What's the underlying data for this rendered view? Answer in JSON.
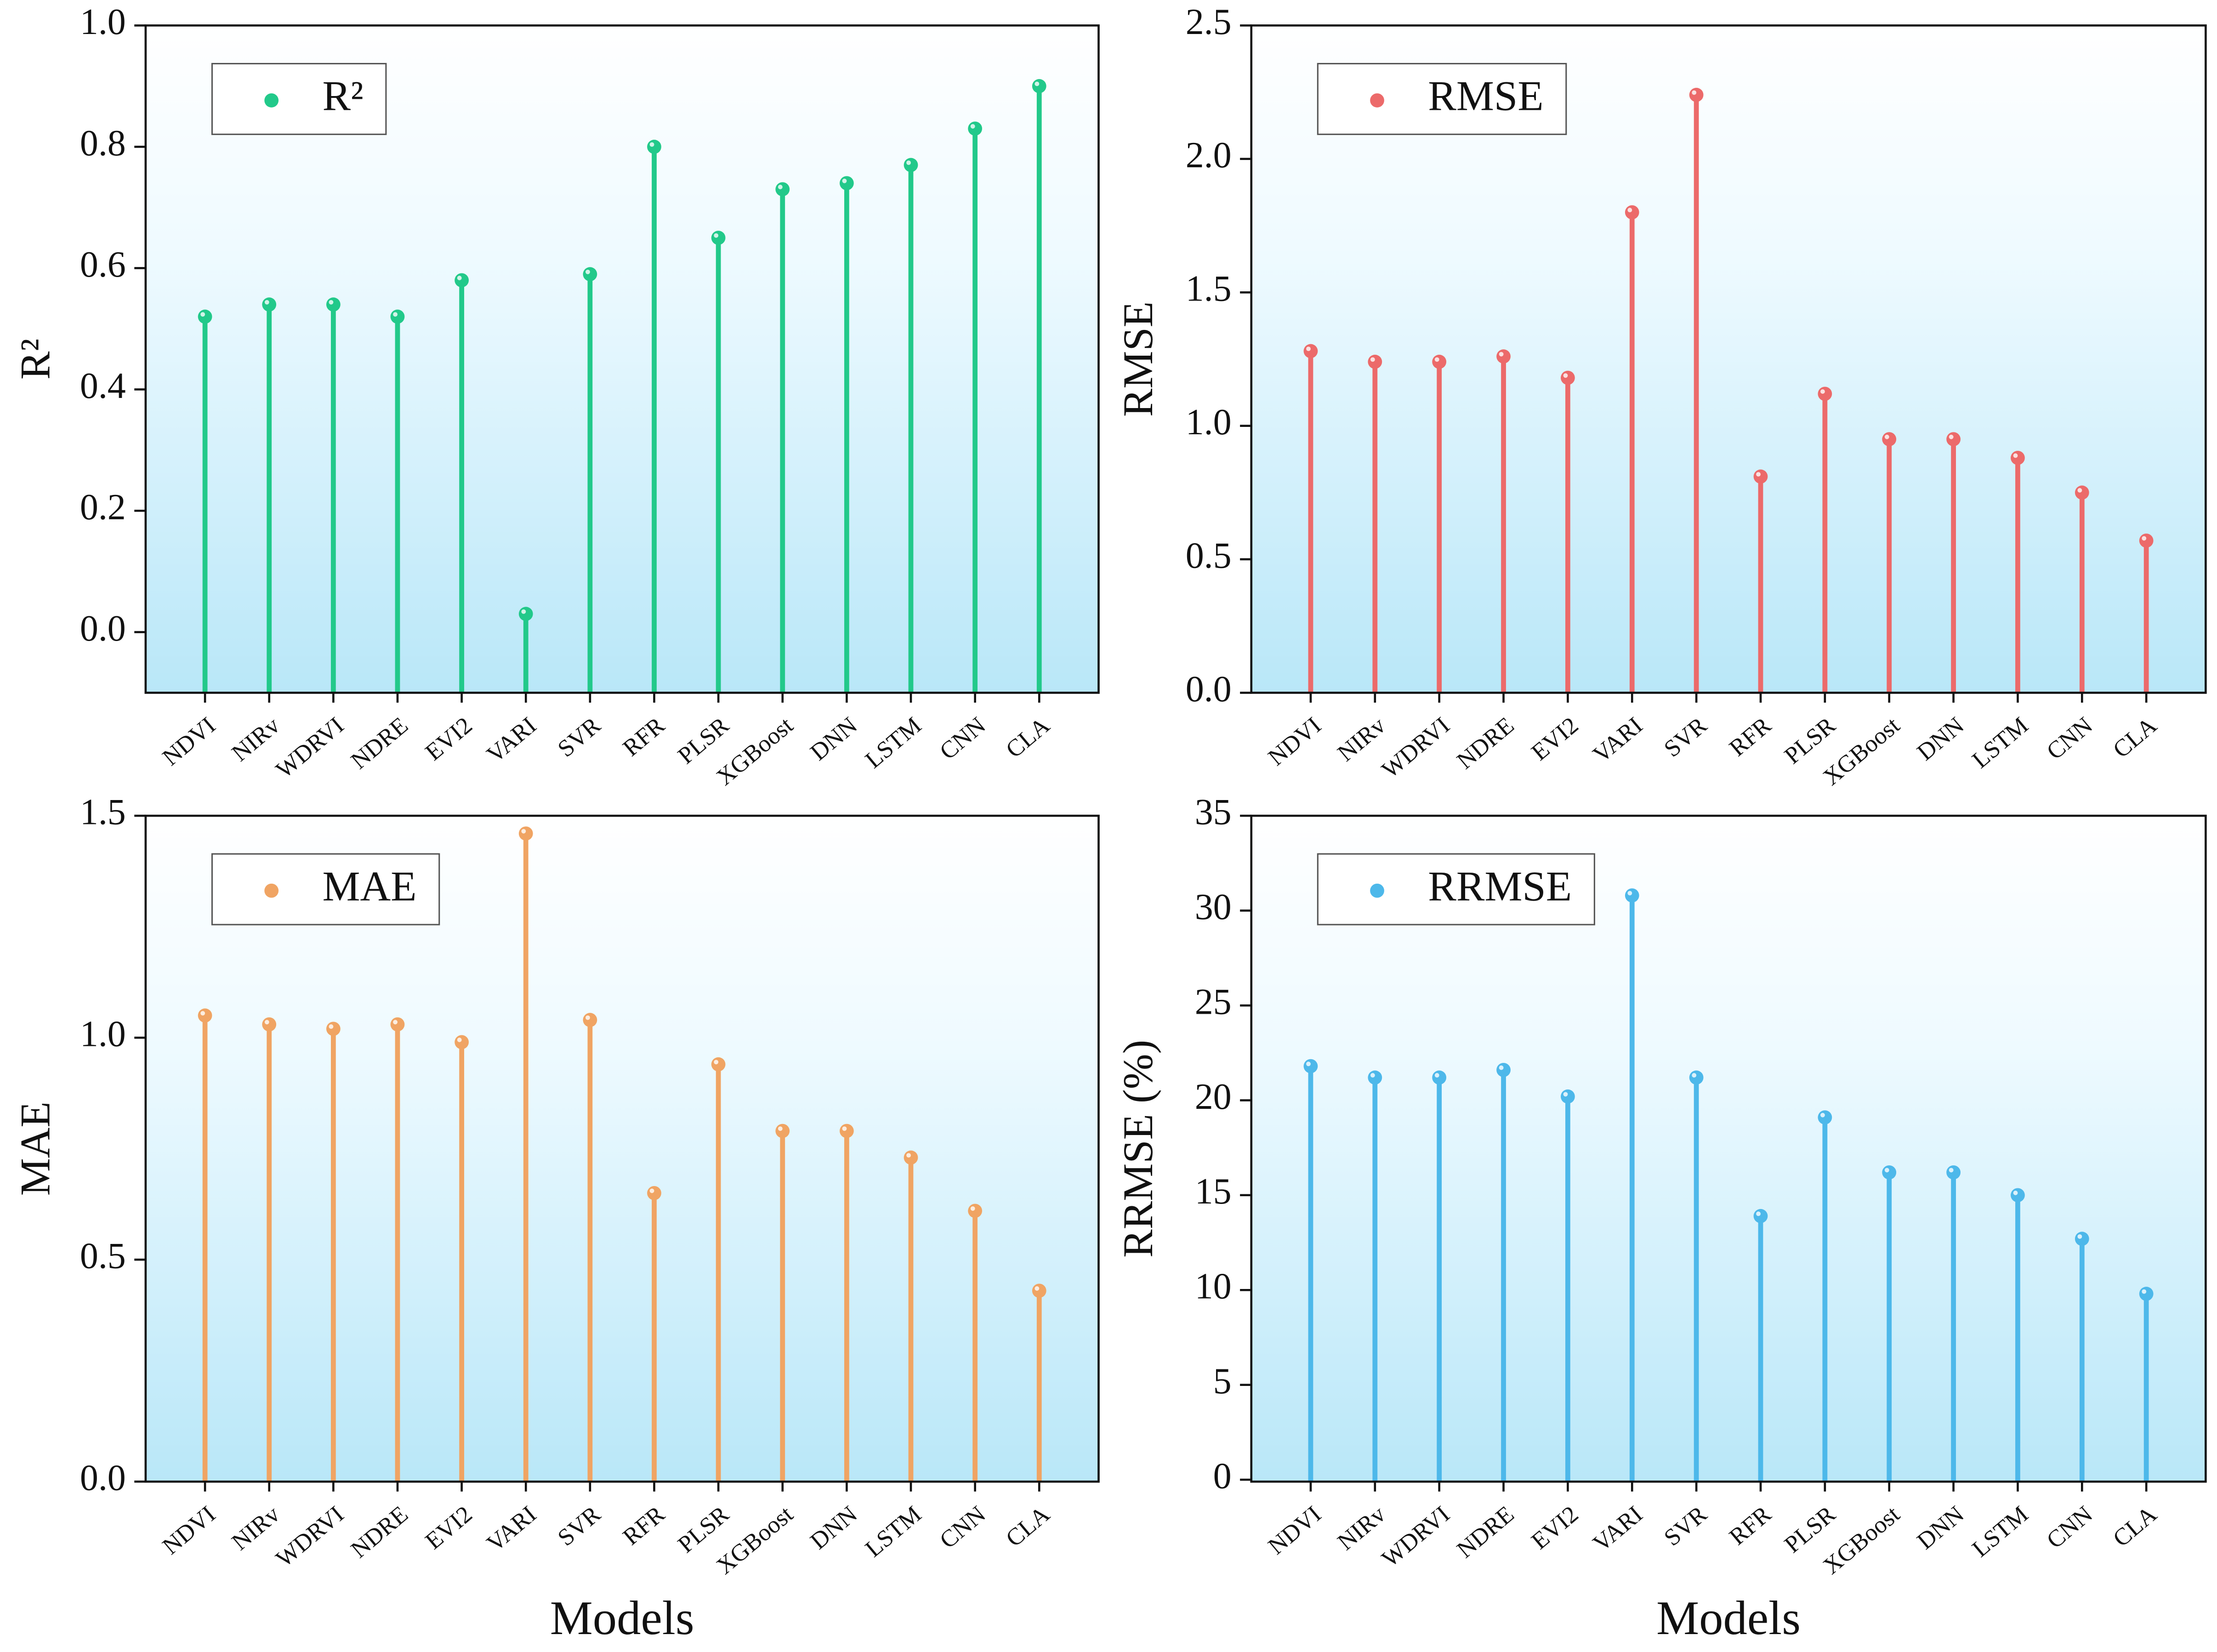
{
  "chart_data": [
    {
      "type": "lollipop",
      "ylabel": "R²",
      "categories": [
        "NDVI",
        "NIRv",
        "WDRVI",
        "NDRE",
        "EVI2",
        "VARI",
        "SVR",
        "RFR",
        "PLSR",
        "XGBoost",
        "DNN",
        "LSTM",
        "CNN",
        "CLA"
      ],
      "series": [
        {
          "name": "R²",
          "color": "#22c98a",
          "values": [
            0.52,
            0.54,
            0.54,
            0.52,
            0.58,
            0.03,
            0.59,
            0.8,
            0.65,
            0.73,
            0.74,
            0.77,
            0.83,
            0.9
          ]
        }
      ],
      "ylim": [
        -0.1,
        1.0
      ],
      "yticks": [
        {
          "value": 0,
          "label": "0.0"
        },
        0.2,
        0.4,
        0.6,
        0.8,
        {
          "value": 1,
          "label": "1.0"
        }
      ]
    },
    {
      "type": "lollipop",
      "ylabel": "RMSE",
      "categories": [
        "NDVI",
        "NIRv",
        "WDRVI",
        "NDRE",
        "EVI2",
        "VARI",
        "SVR",
        "RFR",
        "PLSR",
        "XGBoost",
        "DNN",
        "LSTM",
        "CNN",
        "CLA"
      ],
      "series": [
        {
          "name": "RMSE",
          "color": "#ec6a6a",
          "values": [
            1.28,
            1.24,
            1.24,
            1.26,
            1.18,
            1.8,
            2.24,
            0.81,
            1.12,
            0.95,
            0.95,
            0.88,
            0.75,
            0.57
          ]
        }
      ],
      "ylim": [
        0,
        2.5
      ],
      "yticks": [
        {
          "value": 0,
          "label": "0.0"
        },
        0.5,
        {
          "value": 1,
          "label": "1.0"
        },
        1.5,
        {
          "value": 2,
          "label": "2.0"
        },
        2.5
      ]
    },
    {
      "type": "lollipop",
      "ylabel": "MAE",
      "xlabel": "Models",
      "categories": [
        "NDVI",
        "NIRv",
        "WDRVI",
        "NDRE",
        "EVI2",
        "VARI",
        "SVR",
        "RFR",
        "PLSR",
        "XGBoost",
        "DNN",
        "LSTM",
        "CNN",
        "CLA"
      ],
      "series": [
        {
          "name": "MAE",
          "color": "#f0a463",
          "values": [
            1.05,
            1.03,
            1.02,
            1.03,
            0.99,
            1.46,
            1.04,
            0.65,
            0.94,
            0.79,
            0.79,
            0.73,
            0.61,
            0.43
          ]
        }
      ],
      "ylim": [
        0,
        1.5
      ],
      "yticks": [
        {
          "value": 0,
          "label": "0.0"
        },
        0.5,
        {
          "value": 1,
          "label": "1.0"
        },
        1.5
      ]
    },
    {
      "type": "lollipop",
      "ylabel": "RRMSE (%)",
      "xlabel": "Models",
      "categories": [
        "NDVI",
        "NIRv",
        "WDRVI",
        "NDRE",
        "EVI2",
        "VARI",
        "SVR",
        "RFR",
        "PLSR",
        "XGBoost",
        "DNN",
        "LSTM",
        "CNN",
        "CLA"
      ],
      "series": [
        {
          "name": "RRMSE",
          "color": "#4db8ea",
          "values": [
            21.8,
            21.2,
            21.2,
            21.6,
            20.2,
            30.8,
            21.2,
            13.9,
            19.1,
            16.2,
            16.2,
            15.0,
            12.7,
            9.8
          ]
        }
      ],
      "ylim": [
        -0.1,
        35
      ],
      "yticks": [
        0,
        5,
        10,
        15,
        20,
        25,
        30,
        35
      ]
    }
  ]
}
